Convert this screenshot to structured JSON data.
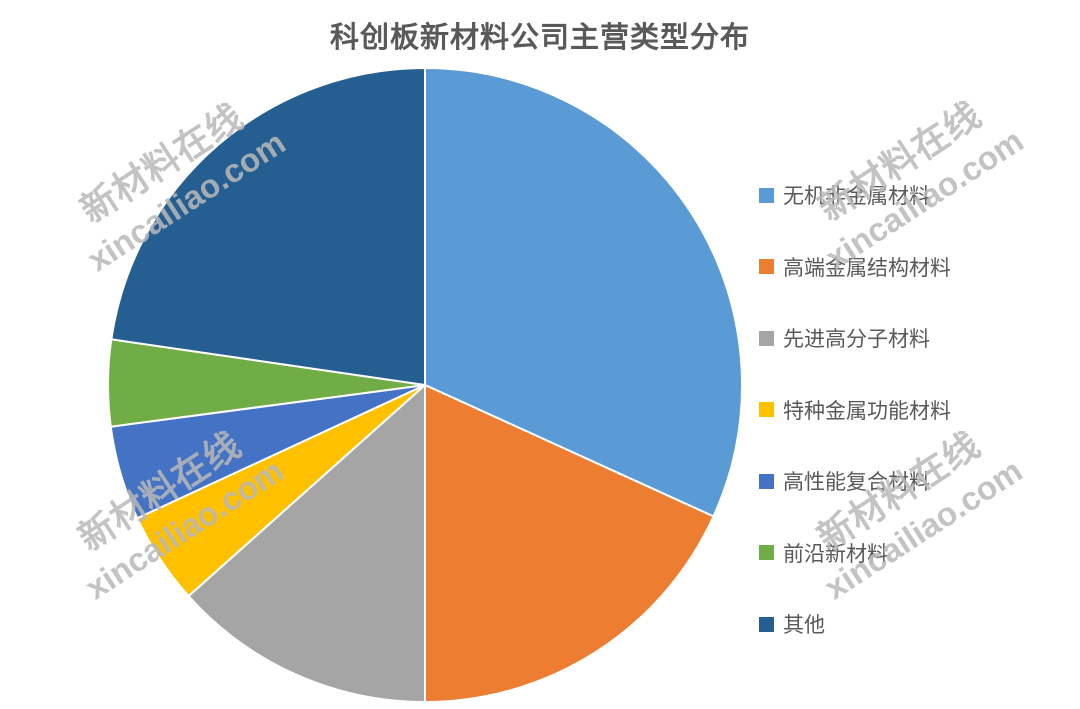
{
  "chart_data": {
    "type": "pie",
    "title": "科创板新材料公司主营类型分布",
    "legend_position": "right",
    "start_angle_deg": 0,
    "direction": "clockwise",
    "data_labels_shown": false,
    "categories": [
      "无机非金属材料",
      "高端金属结构材料",
      "先进高分子材料",
      "特种金属功能材料",
      "高性能复合材料",
      "前沿新材料",
      "其他"
    ],
    "values_percent": [
      31.8,
      18.2,
      13.4,
      4.7,
      4.8,
      4.4,
      22.7
    ],
    "colors": [
      "#5B9BD5",
      "#ED7D31",
      "#A5A5A5",
      "#FFC000",
      "#4472C4",
      "#70AD47",
      "#255E91"
    ],
    "slice_border_color": "#FFFFFF"
  },
  "title_color": "#595959",
  "legend_text_color": "#595959",
  "watermark": {
    "line1": "新材料在线",
    "line2": "xincailiao.com",
    "color": "#B9B9B9"
  }
}
